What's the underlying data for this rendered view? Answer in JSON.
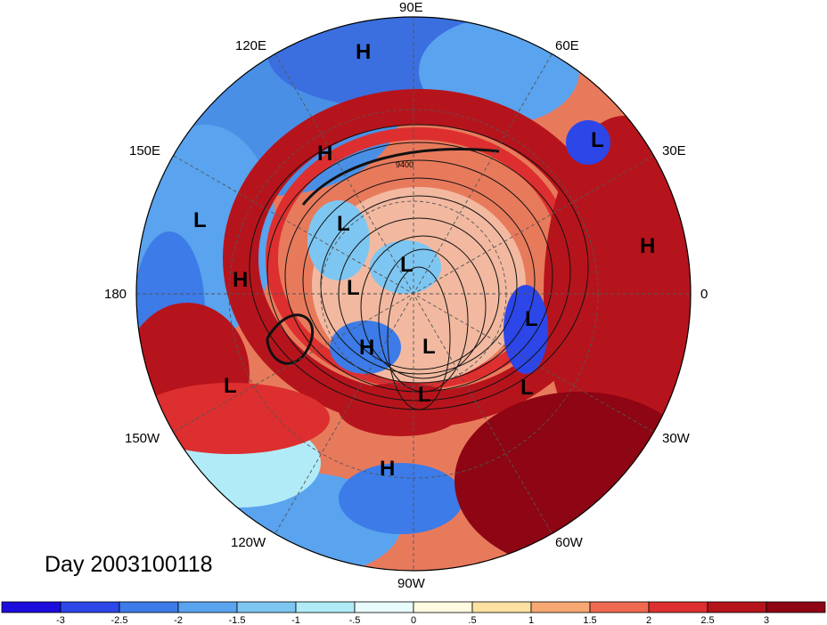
{
  "date_label": "Day 2003100118",
  "longitude_labels": {
    "lon_90e": "90E",
    "lon_120e": "120E",
    "lon_60e": "60E",
    "lon_150e": "150E",
    "lon_30e": "30E",
    "lon_180": "180",
    "lon_0": "0",
    "lon_150w": "150W",
    "lon_30w": "30W",
    "lon_120w": "120W",
    "lon_60w": "60W",
    "lon_90w": "90W"
  },
  "pressure_centers": [
    {
      "label": "H",
      "name": "high-north"
    },
    {
      "label": "H",
      "name": "high-siberia"
    },
    {
      "label": "L",
      "name": "low-scandinavia"
    },
    {
      "label": "L",
      "name": "low-north-pacific"
    },
    {
      "label": "H",
      "name": "high-africa"
    },
    {
      "label": "H",
      "name": "high-east-pacific"
    },
    {
      "label": "L",
      "name": "low-arctic"
    },
    {
      "label": "L",
      "name": "low-pole"
    },
    {
      "label": "L",
      "name": "low-central"
    },
    {
      "label": "L",
      "name": "low-atlantic"
    },
    {
      "label": "H",
      "name": "high-alaska"
    },
    {
      "label": "L",
      "name": "low-hudson"
    },
    {
      "label": "L",
      "name": "low-canada"
    },
    {
      "label": "L",
      "name": "low-gulf-alaska"
    },
    {
      "label": "L",
      "name": "low-newfoundland"
    },
    {
      "label": "H",
      "name": "high-us"
    }
  ],
  "contour_label": "9400",
  "colorbar": {
    "ticks": [
      "-3",
      "-2.5",
      "-2",
      "-1.5",
      "-1",
      "-.5",
      "0",
      ".5",
      "1",
      "1.5",
      "2",
      "2.5",
      "3"
    ],
    "colors": [
      "#1c0ddd",
      "#2c46e8",
      "#3c7be8",
      "#5aa3ee",
      "#7ec6f2",
      "#b1ebf7",
      "#e8fbfd",
      "#fffbe0",
      "#fde1a0",
      "#f7a873",
      "#ef6a50",
      "#dd2f2f",
      "#b6141c",
      "#8e0513"
    ]
  },
  "colors": {
    "outline": "#000000",
    "grid": "#555555",
    "contour": "#111111"
  }
}
